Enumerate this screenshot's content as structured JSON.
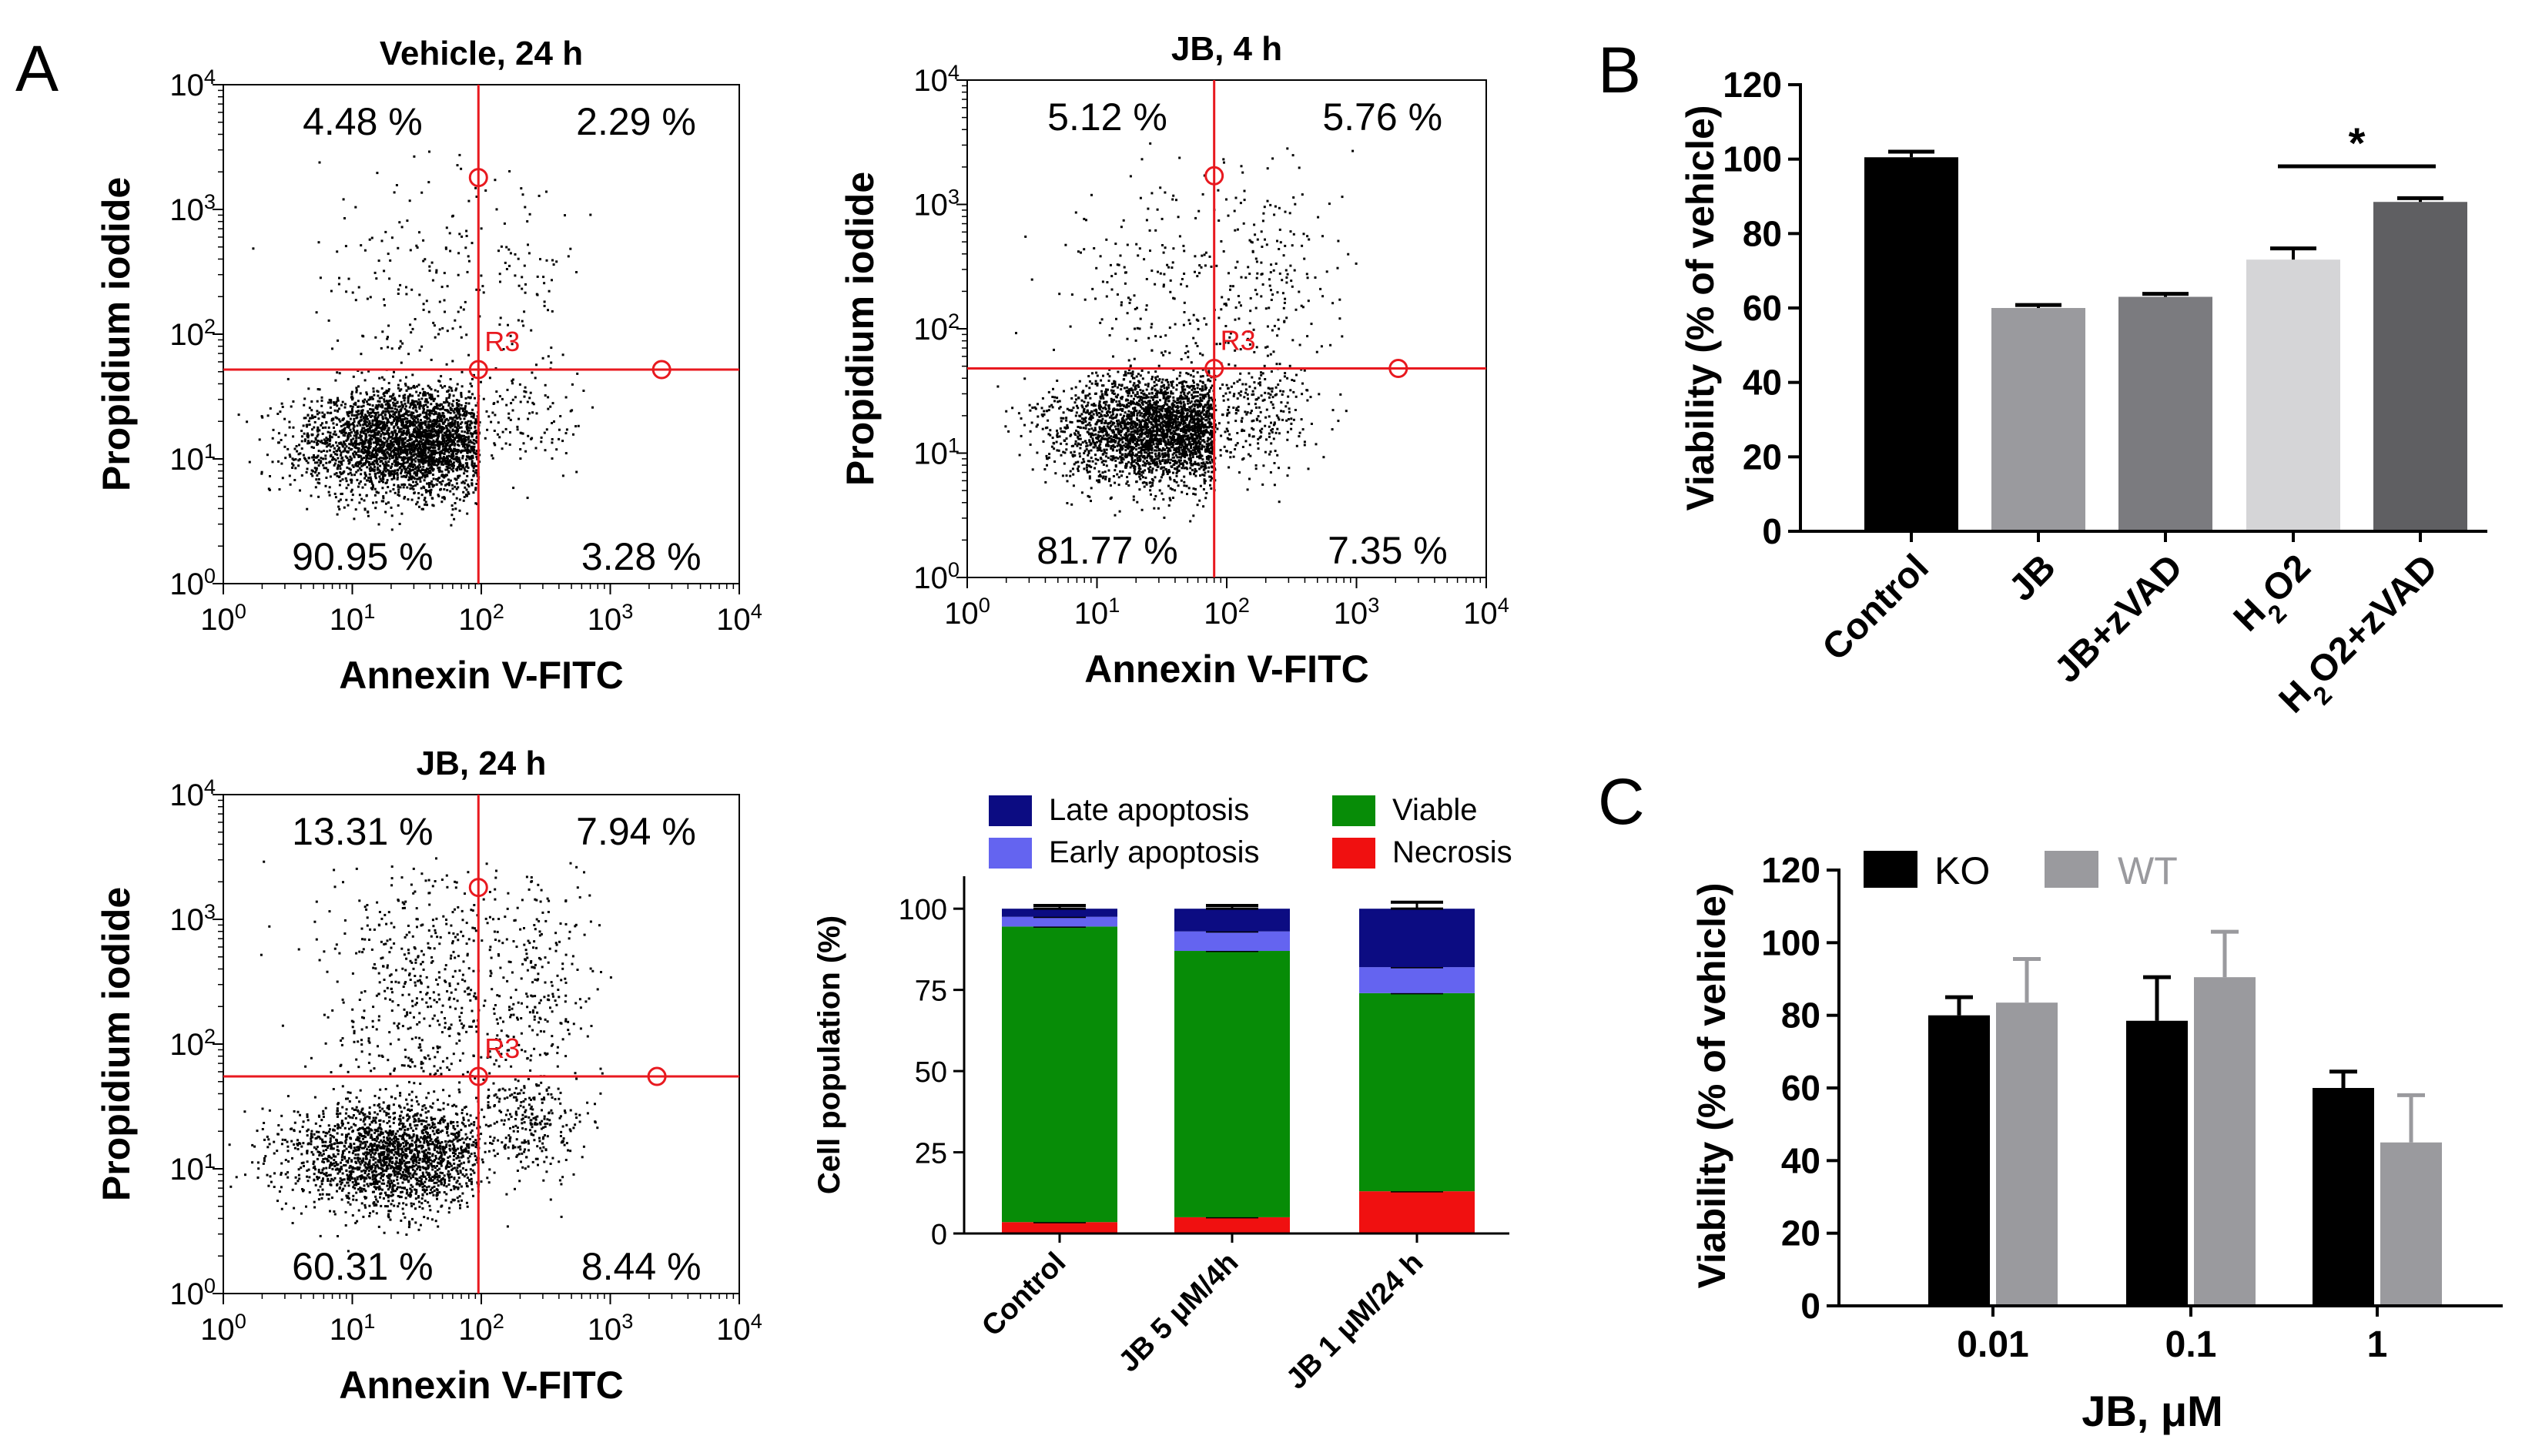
{
  "panel_letters": {
    "a": "A",
    "b": "B",
    "c": "C"
  },
  "colors": {
    "gate": "#e8191f",
    "dots": "#000000",
    "late_apoptosis": "#0c0c82",
    "early_apoptosis": "#6464f0",
    "viable": "#078c07",
    "necrosis": "#f01010",
    "bar_black": "#000000",
    "bar_grey": "#9a9a9e",
    "bar_mid": "#7b7b7f",
    "bar_light": "#d5d5d7",
    "bar_dark": "#5f5f62"
  },
  "chart_data": [
    {
      "id": "scatter-vehicle-24h",
      "type": "scatter",
      "title": "Vehicle, 24 h",
      "xlabel": "Annexin V-FITC",
      "ylabel": "Propidium iodide",
      "xscale": "log",
      "yscale": "log",
      "xlim": [
        1,
        10000
      ],
      "ylim": [
        1,
        10000
      ],
      "tick_labels": [
        {
          "base": "10",
          "exp": "0"
        },
        {
          "base": "10",
          "exp": "1"
        },
        {
          "base": "10",
          "exp": "2"
        },
        {
          "base": "10",
          "exp": "3"
        },
        {
          "base": "10",
          "exp": "4"
        }
      ],
      "gate_label": "R3",
      "gate": {
        "x": 95,
        "y": 52,
        "top_handle_y": 1800,
        "right_handle_x": 2500
      },
      "quadrants": {
        "upper_left": "4.48 %",
        "upper_right": "2.29 %",
        "lower_left": "90.95 %",
        "lower_right": "3.28 %"
      },
      "fractions": {
        "upper_left": 0.0448,
        "upper_right": 0.0229,
        "lower_left": 0.9095,
        "lower_right": 0.0328
      },
      "cloud": {
        "center_x": 30,
        "center_y": 14,
        "n": 3400,
        "seed": 11
      }
    },
    {
      "id": "scatter-jb-4h",
      "type": "scatter",
      "title": "JB, 4 h",
      "xlabel": "Annexin V-FITC",
      "ylabel": "Propidium iodide",
      "xscale": "log",
      "yscale": "log",
      "xlim": [
        1,
        10000
      ],
      "ylim": [
        1,
        10000
      ],
      "tick_labels": [
        {
          "base": "10",
          "exp": "0"
        },
        {
          "base": "10",
          "exp": "1"
        },
        {
          "base": "10",
          "exp": "2"
        },
        {
          "base": "10",
          "exp": "3"
        },
        {
          "base": "10",
          "exp": "4"
        }
      ],
      "gate_label": "R3",
      "gate": {
        "x": 80,
        "y": 48,
        "top_handle_y": 1700,
        "right_handle_x": 2100
      },
      "quadrants": {
        "upper_left": "5.12 %",
        "upper_right": "5.76 %",
        "lower_left": "81.77 %",
        "lower_right": "7.35 %"
      },
      "fractions": {
        "upper_left": 0.0512,
        "upper_right": 0.0576,
        "lower_left": 0.8177,
        "lower_right": 0.0735
      },
      "cloud": {
        "center_x": 35,
        "center_y": 16,
        "n": 3400,
        "seed": 23
      }
    },
    {
      "id": "scatter-jb-24h",
      "type": "scatter",
      "title": "JB, 24 h",
      "xlabel": "Annexin V-FITC",
      "ylabel": "Propidium iodide",
      "xscale": "log",
      "yscale": "log",
      "xlim": [
        1,
        10000
      ],
      "ylim": [
        1,
        10000
      ],
      "tick_labels": [
        {
          "base": "10",
          "exp": "0"
        },
        {
          "base": "10",
          "exp": "1"
        },
        {
          "base": "10",
          "exp": "2"
        },
        {
          "base": "10",
          "exp": "3"
        },
        {
          "base": "10",
          "exp": "4"
        }
      ],
      "gate_label": "R3",
      "gate": {
        "x": 95,
        "y": 55,
        "top_handle_y": 1800,
        "right_handle_x": 2300
      },
      "quadrants": {
        "upper_left": "13.31 %",
        "upper_right": "7.94 %",
        "lower_left": "60.31 %",
        "lower_right": "8.44 %"
      },
      "fractions": {
        "upper_left": 0.1331,
        "upper_right": 0.0794,
        "lower_left": 0.6031,
        "lower_right": 0.0844
      },
      "cloud": {
        "center_x": 22,
        "center_y": 13,
        "n": 3400,
        "seed": 37
      }
    },
    {
      "id": "stacked-cell-population",
      "type": "bar",
      "stacked": true,
      "ylabel": "Cell population (%)",
      "ylim": [
        0,
        110
      ],
      "yticks": [
        0,
        25,
        50,
        75,
        100
      ],
      "ytick_labels": [
        "0",
        "25",
        "50",
        "75",
        "100"
      ],
      "categories": [
        "Control",
        "JB 5 μM/4h",
        "JB 1 μM/24 h"
      ],
      "legend": [
        "Late apoptosis",
        "Viable",
        "Early apoptosis",
        "Necrosis"
      ],
      "series": [
        {
          "name": "Necrosis",
          "values": [
            3.5,
            5,
            13
          ],
          "errors": [
            1,
            3,
            1.5
          ]
        },
        {
          "name": "Viable",
          "values": [
            91,
            82,
            61
          ],
          "errors": [
            0.5,
            1,
            1
          ]
        },
        {
          "name": "Early apoptosis",
          "values": [
            3,
            6,
            8
          ],
          "errors": [
            1,
            3,
            1
          ]
        },
        {
          "name": "Late apoptosis",
          "values": [
            2.5,
            7,
            18
          ],
          "errors": [
            1,
            1,
            2
          ]
        }
      ]
    },
    {
      "id": "viability-b",
      "type": "bar",
      "panel": "B",
      "ylabel": "Viability (% of vehicle)",
      "ylim": [
        0,
        120
      ],
      "yticks": [
        0,
        20,
        40,
        60,
        80,
        100,
        120
      ],
      "ytick_labels": [
        "0",
        "20",
        "40",
        "60",
        "80",
        "100",
        "120"
      ],
      "categories": [
        "Control",
        "JB",
        "JB+zVAD",
        "H2O2",
        "H2O2+zVAD"
      ],
      "values": [
        100.5,
        60,
        63,
        73,
        88.5
      ],
      "errors": [
        1.5,
        0.8,
        0.8,
        3,
        1
      ],
      "significance": {
        "from": 3,
        "to": 4,
        "label": "*"
      }
    },
    {
      "id": "viability-c",
      "type": "bar",
      "panel": "C",
      "ylabel": "Viability (% of vehicle)",
      "xlabel": "JB, μM",
      "ylim": [
        0,
        120
      ],
      "yticks": [
        0,
        20,
        40,
        60,
        80,
        100,
        120
      ],
      "ytick_labels": [
        "0",
        "20",
        "40",
        "60",
        "80",
        "100",
        "120"
      ],
      "categories": [
        "0.01",
        "0.1",
        "1"
      ],
      "series": [
        {
          "name": "KO",
          "values": [
            80,
            78.5,
            60
          ],
          "errors": [
            5,
            12,
            4.5
          ]
        },
        {
          "name": "WT",
          "values": [
            83.5,
            90.5,
            45
          ],
          "errors": [
            12,
            12.5,
            13
          ]
        }
      ]
    }
  ]
}
